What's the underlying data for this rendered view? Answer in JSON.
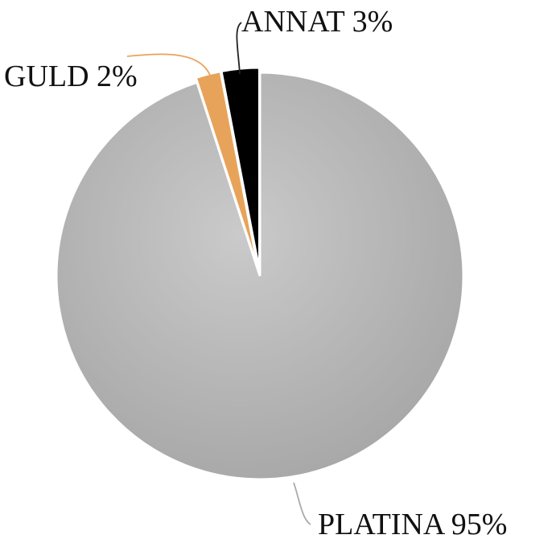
{
  "chart_data": {
    "type": "pie",
    "categories": [
      "PLATINA",
      "GULD",
      "ANNAT"
    ],
    "values": [
      95,
      2,
      3
    ],
    "value_labels": [
      "95%",
      "2%",
      "3%"
    ],
    "colors": [
      "#b4b4b4",
      "#e8a35a",
      "#000000"
    ]
  }
}
